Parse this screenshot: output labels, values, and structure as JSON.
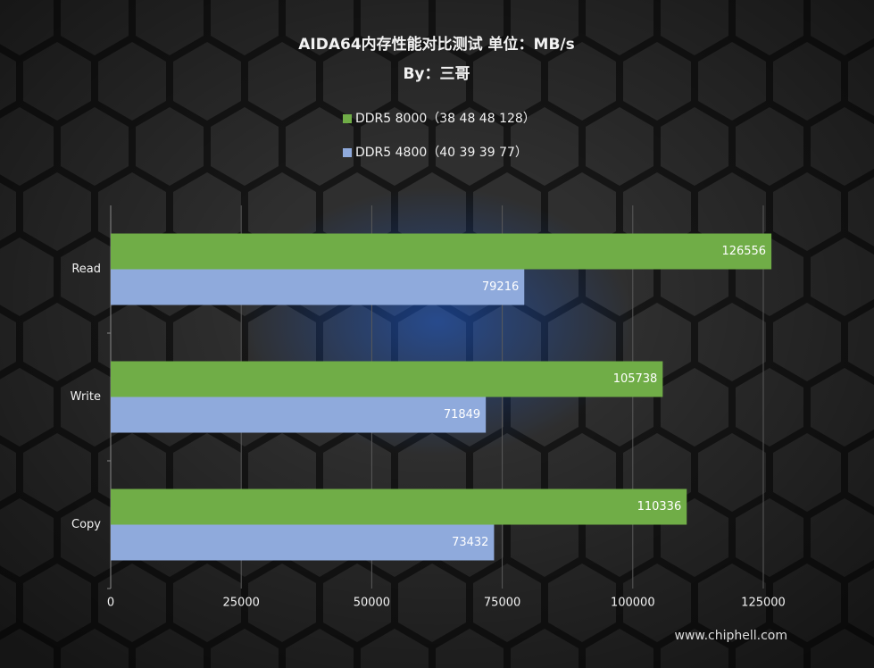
{
  "chart_data": {
    "type": "bar",
    "orientation": "horizontal",
    "title": "AIDA64内存性能对比测试 单位：MB/s",
    "subtitle": "By：三哥",
    "watermark": "www.chiphell.com",
    "categories": [
      "Read",
      "Write",
      "Copy"
    ],
    "series": [
      {
        "name": "DDR5 8000（38 48 48 128）",
        "color": "#70ad47",
        "values": [
          126556,
          105738,
          110336
        ]
      },
      {
        "name": "DDR5 4800（40 39 39 77）",
        "color": "#8faadc",
        "values": [
          79216,
          71849,
          73432
        ]
      }
    ],
    "xlim": [
      0,
      125000
    ],
    "xticks": [
      0,
      25000,
      50000,
      75000,
      100000,
      125000
    ],
    "grid": true,
    "legend": "top"
  }
}
